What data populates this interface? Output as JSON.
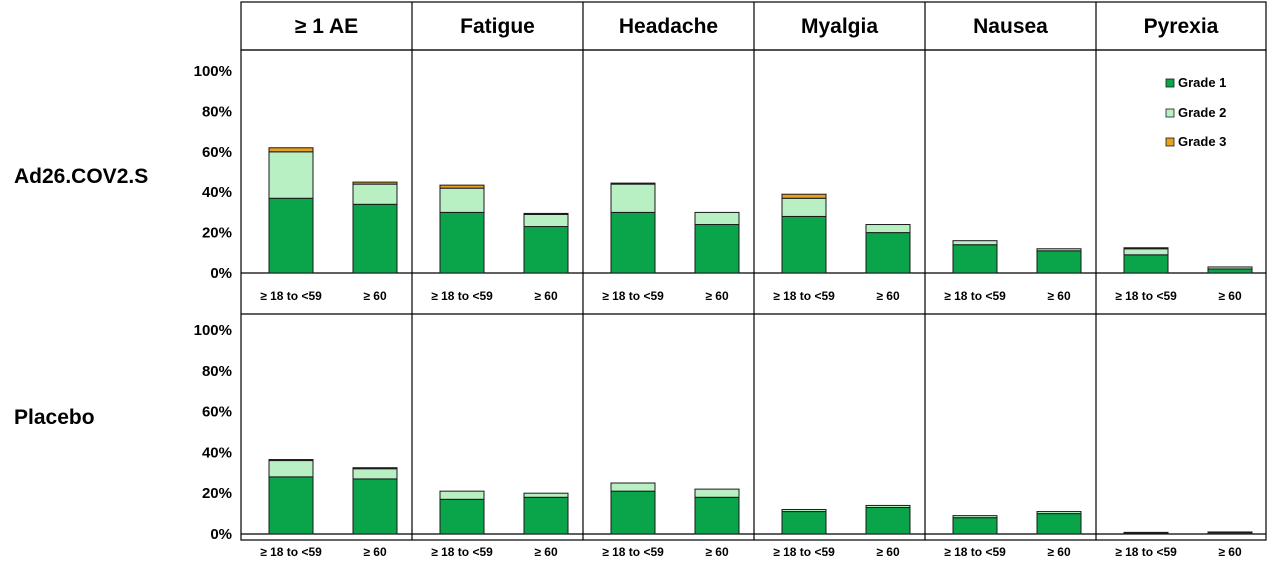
{
  "chart_data": {
    "type": "bar",
    "stacked": true,
    "columns": [
      "≥ 1 AE",
      "Fatigue",
      "Headache",
      "Myalgia",
      "Nausea",
      "Pyrexia"
    ],
    "rows": [
      "Ad26.COV2.S",
      "Placebo"
    ],
    "categories": [
      "≥ 18 to <59",
      "≥ 60"
    ],
    "y_ticks": [
      "0%",
      "20%",
      "40%",
      "60%",
      "80%",
      "100%"
    ],
    "ylim": [
      0,
      100
    ],
    "legend": [
      {
        "name": "Grade 1",
        "color": "#0aa44a"
      },
      {
        "name": "Grade 2",
        "color": "#b8f0c4"
      },
      {
        "name": "Grade 3",
        "color": "#e8a020"
      }
    ],
    "legend_position": "top-right",
    "panels": [
      {
        "row": "Ad26.COV2.S",
        "column": "≥ 1 AE",
        "bars": [
          {
            "category": "≥ 18 to <59",
            "g1": 37,
            "g2": 23,
            "g3": 2
          },
          {
            "category": "≥ 60",
            "g1": 34,
            "g2": 10,
            "g3": 1
          }
        ]
      },
      {
        "row": "Ad26.COV2.S",
        "column": "Fatigue",
        "bars": [
          {
            "category": "≥ 18 to <59",
            "g1": 30,
            "g2": 12,
            "g3": 1.5
          },
          {
            "category": "≥ 60",
            "g1": 23,
            "g2": 6,
            "g3": 0.5
          }
        ]
      },
      {
        "row": "Ad26.COV2.S",
        "column": "Headache",
        "bars": [
          {
            "category": "≥ 18 to <59",
            "g1": 30,
            "g2": 14,
            "g3": 0.5
          },
          {
            "category": "≥ 60",
            "g1": 24,
            "g2": 6,
            "g3": 0
          }
        ]
      },
      {
        "row": "Ad26.COV2.S",
        "column": "Myalgia",
        "bars": [
          {
            "category": "≥ 18 to <59",
            "g1": 28,
            "g2": 9,
            "g3": 2
          },
          {
            "category": "≥ 60",
            "g1": 20,
            "g2": 4,
            "g3": 0
          }
        ]
      },
      {
        "row": "Ad26.COV2.S",
        "column": "Nausea",
        "bars": [
          {
            "category": "≥ 18 to <59",
            "g1": 14,
            "g2": 2,
            "g3": 0
          },
          {
            "category": "≥ 60",
            "g1": 11,
            "g2": 1,
            "g3": 0
          }
        ]
      },
      {
        "row": "Ad26.COV2.S",
        "column": "Pyrexia",
        "bars": [
          {
            "category": "≥ 18 to <59",
            "g1": 9,
            "g2": 3,
            "g3": 0.5
          },
          {
            "category": "≥ 60",
            "g1": 2,
            "g2": 1,
            "g3": 0
          }
        ]
      },
      {
        "row": "Placebo",
        "column": "≥ 1 AE",
        "bars": [
          {
            "category": "≥ 18 to <59",
            "g1": 28,
            "g2": 8,
            "g3": 0.5
          },
          {
            "category": "≥ 60",
            "g1": 27,
            "g2": 5,
            "g3": 0.5
          }
        ]
      },
      {
        "row": "Placebo",
        "column": "Fatigue",
        "bars": [
          {
            "category": "≥ 18 to <59",
            "g1": 17,
            "g2": 4,
            "g3": 0
          },
          {
            "category": "≥ 60",
            "g1": 18,
            "g2": 2,
            "g3": 0
          }
        ]
      },
      {
        "row": "Placebo",
        "column": "Headache",
        "bars": [
          {
            "category": "≥ 18 to <59",
            "g1": 21,
            "g2": 4,
            "g3": 0
          },
          {
            "category": "≥ 60",
            "g1": 18,
            "g2": 4,
            "g3": 0
          }
        ]
      },
      {
        "row": "Placebo",
        "column": "Myalgia",
        "bars": [
          {
            "category": "≥ 18 to <59",
            "g1": 11,
            "g2": 1,
            "g3": 0
          },
          {
            "category": "≥ 60",
            "g1": 13,
            "g2": 1,
            "g3": 0
          }
        ]
      },
      {
        "row": "Placebo",
        "column": "Nausea",
        "bars": [
          {
            "category": "≥ 18 to <59",
            "g1": 8,
            "g2": 1,
            "g3": 0
          },
          {
            "category": "≥ 60",
            "g1": 10,
            "g2": 1,
            "g3": 0
          }
        ]
      },
      {
        "row": "Placebo",
        "column": "Pyrexia",
        "bars": [
          {
            "category": "≥ 18 to <59",
            "g1": 0.5,
            "g2": 0.3,
            "g3": 0
          },
          {
            "category": "≥ 60",
            "g1": 0.7,
            "g2": 0.3,
            "g3": 0
          }
        ]
      }
    ]
  }
}
